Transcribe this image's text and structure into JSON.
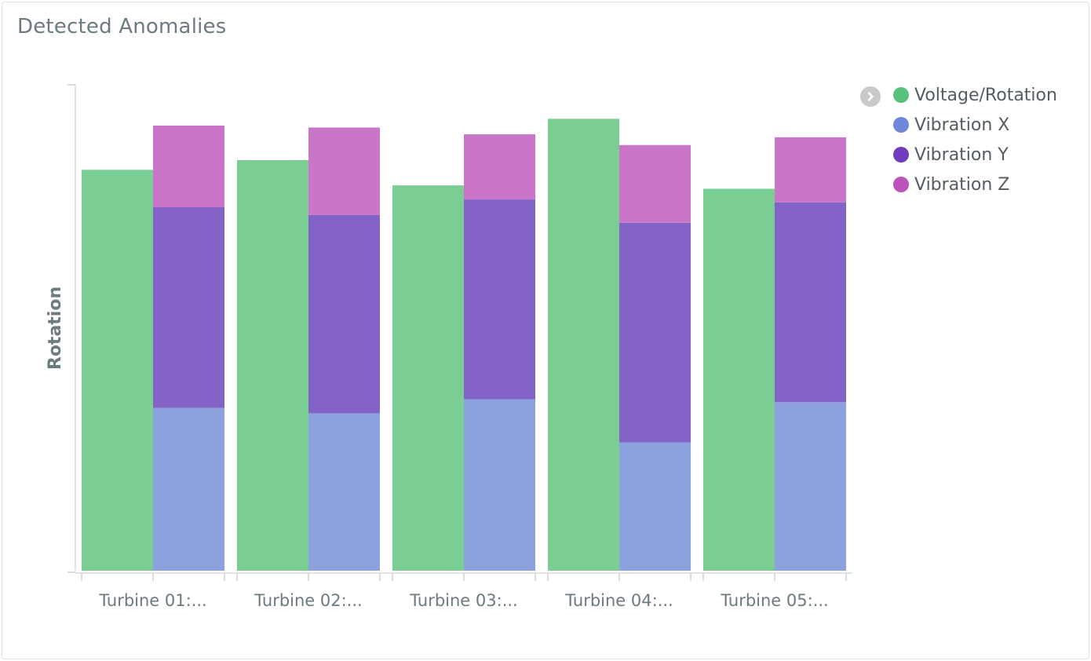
{
  "panel": {
    "title": "Detected Anomalies"
  },
  "legend": {
    "toggle_icon": "chevron-right-icon",
    "items": [
      {
        "label": "Voltage/Rotation",
        "color": "#57c17b"
      },
      {
        "label": "Vibration X",
        "color": "#6f87d8"
      },
      {
        "label": "Vibration Y",
        "color": "#6f3cbd"
      },
      {
        "label": "Vibration Z",
        "color": "#bc52bc"
      }
    ]
  },
  "chart_data": {
    "type": "bar",
    "ylabel": "Rotation",
    "xlabel": "",
    "categories": [
      "Turbine 01:...",
      "Turbine 02:...",
      "Turbine 03:...",
      "Turbine 04:...",
      "Turbine 05:..."
    ],
    "ylim": [
      0,
      100
    ],
    "grid": false,
    "legend_position": "top-right",
    "series": [
      {
        "name": "Voltage/Rotation",
        "stack": "voltage",
        "color": "#7acd93",
        "values": [
          82.5,
          84.5,
          79.3,
          93.0,
          78.6
        ]
      },
      {
        "name": "Vibration X",
        "stack": "vibration",
        "color": "#8da1de",
        "values": [
          33.5,
          32.4,
          35.3,
          26.4,
          34.7
        ]
      },
      {
        "name": "Vibration Y",
        "stack": "vibration",
        "color": "#8364c6",
        "values": [
          41.3,
          40.8,
          41.1,
          45.2,
          41.1
        ]
      },
      {
        "name": "Vibration Z",
        "stack": "vibration",
        "color": "#c975c8",
        "values": [
          16.8,
          18.0,
          13.4,
          16.0,
          13.4
        ]
      }
    ]
  }
}
